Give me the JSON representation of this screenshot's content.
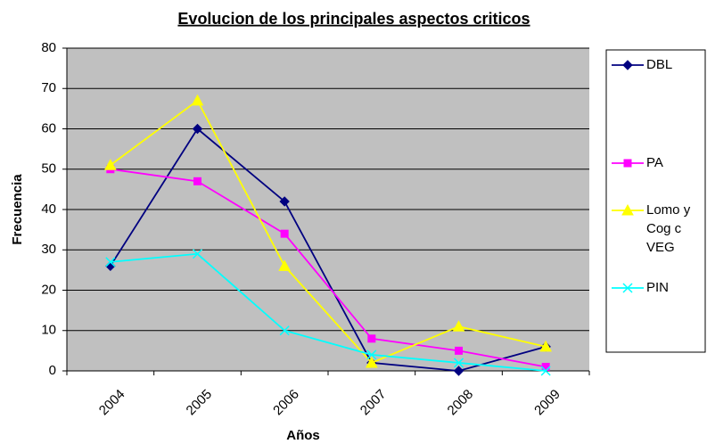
{
  "chart_data": {
    "type": "line",
    "title": "Evolucion de los principales aspectos criticos",
    "x_label": "Años",
    "y_label": "Frecuencia",
    "categories": [
      "2004",
      "2005",
      "2006",
      "2007",
      "2008",
      "2009"
    ],
    "series": [
      {
        "name": "DBL",
        "color": "#000080",
        "marker": "diamond",
        "values": [
          26,
          60,
          42,
          2,
          0,
          6
        ]
      },
      {
        "name": "PA",
        "color": "#ff00ff",
        "marker": "square",
        "values": [
          50,
          47,
          34,
          8,
          5,
          1
        ]
      },
      {
        "name": "Lomo y Cog c VEG",
        "color": "#ffff00",
        "marker": "triangle",
        "values": [
          51,
          67,
          26,
          2,
          11,
          6
        ]
      },
      {
        "name": "PIN",
        "color": "#00ffff",
        "marker": "x",
        "values": [
          27,
          29,
          10,
          4,
          2,
          0
        ]
      }
    ],
    "ylim": [
      0,
      80
    ],
    "yticks": [
      0,
      10,
      20,
      30,
      40,
      50,
      60,
      70,
      80
    ],
    "grid": true,
    "legend": "right",
    "plot_background": "#c0c0c0"
  }
}
